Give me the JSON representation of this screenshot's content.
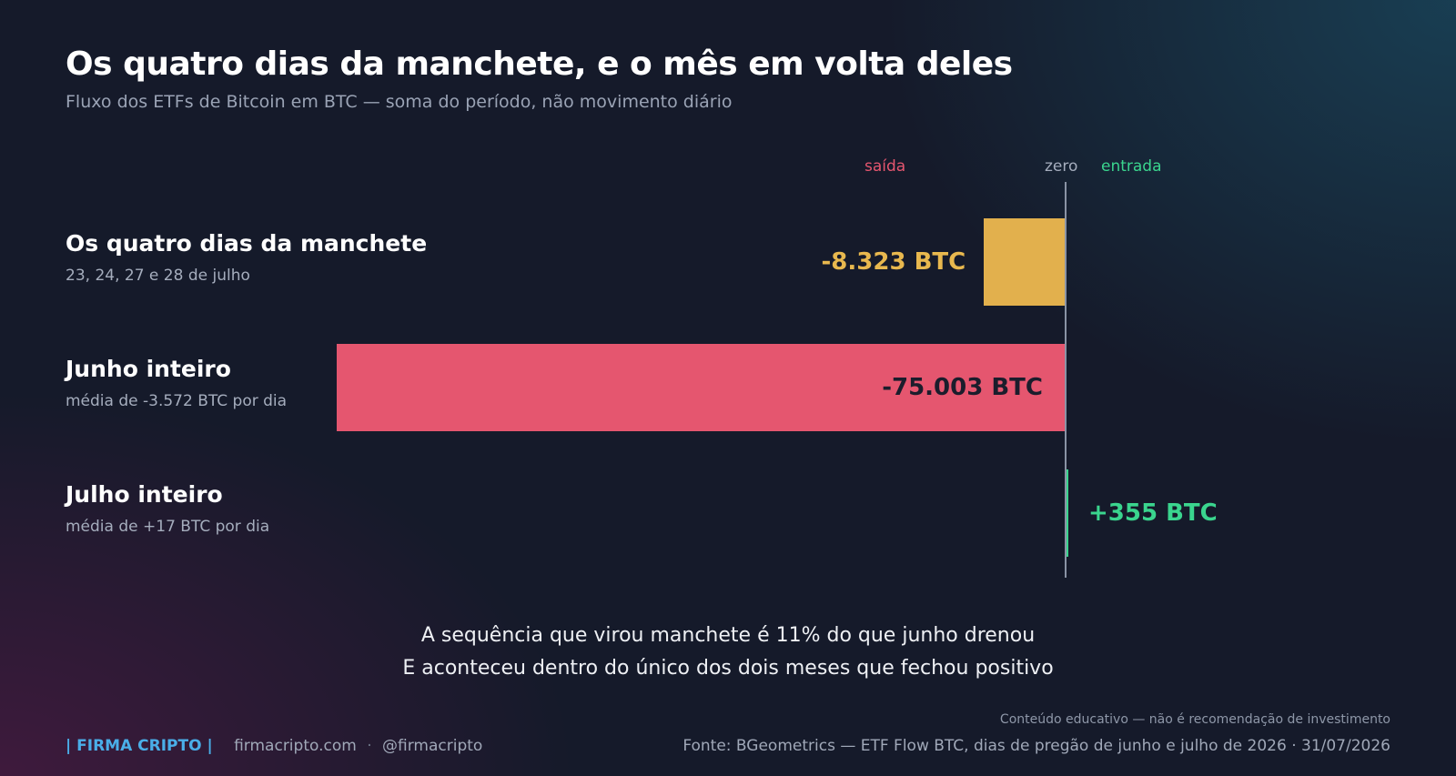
{
  "title": "Os quatro dias da manchete, e o mês em volta deles",
  "subtitle": "Fluxo dos ETFs de Bitcoin em BTC — soma do período, não movimento diário",
  "headers": {
    "saida": "saída",
    "zero": "zero",
    "entrada": "entrada"
  },
  "colors": {
    "outflow": "#e5566f",
    "highlight": "#e2b04d",
    "inflow": "#3ad58e",
    "brand": "#4aaee8"
  },
  "chart_data": {
    "type": "bar",
    "orientation": "horizontal",
    "categories": [
      "Os quatro dias da manchete",
      "Junho inteiro",
      "Julho inteiro"
    ],
    "category_subtitles": [
      "23, 24, 27 e 28 de julho",
      "média de -3.572 BTC por dia",
      "média de +17 BTC por dia"
    ],
    "values": [
      -8323,
      -75003,
      355
    ],
    "value_labels": [
      "-8.323 BTC",
      "-75.003 BTC",
      "+355 BTC"
    ],
    "bar_colors": [
      "#e2b04d",
      "#e5566f",
      "#3ad58e"
    ],
    "label_colors": [
      "#e8b84e",
      "#1b1d2c",
      "#3ad58e"
    ],
    "axis_markers": [
      "saída",
      "zero",
      "entrada"
    ]
  },
  "insight": {
    "line1": "A sequência que virou manchete é 11% do que junho drenou",
    "line2": "E aconteceu dentro do único dos dois meses que fechou positivo"
  },
  "footer": {
    "brand": "| FIRMA CRIPTO |",
    "site": "firmacripto.com",
    "separator": "·",
    "handle": "@firmacripto",
    "disclaimer": "Conteúdo educativo — não é recomendação de investimento",
    "source": "Fonte: BGeometrics — ETF Flow BTC, dias de pregão de junho e julho de 2026  ·  31/07/2026"
  }
}
